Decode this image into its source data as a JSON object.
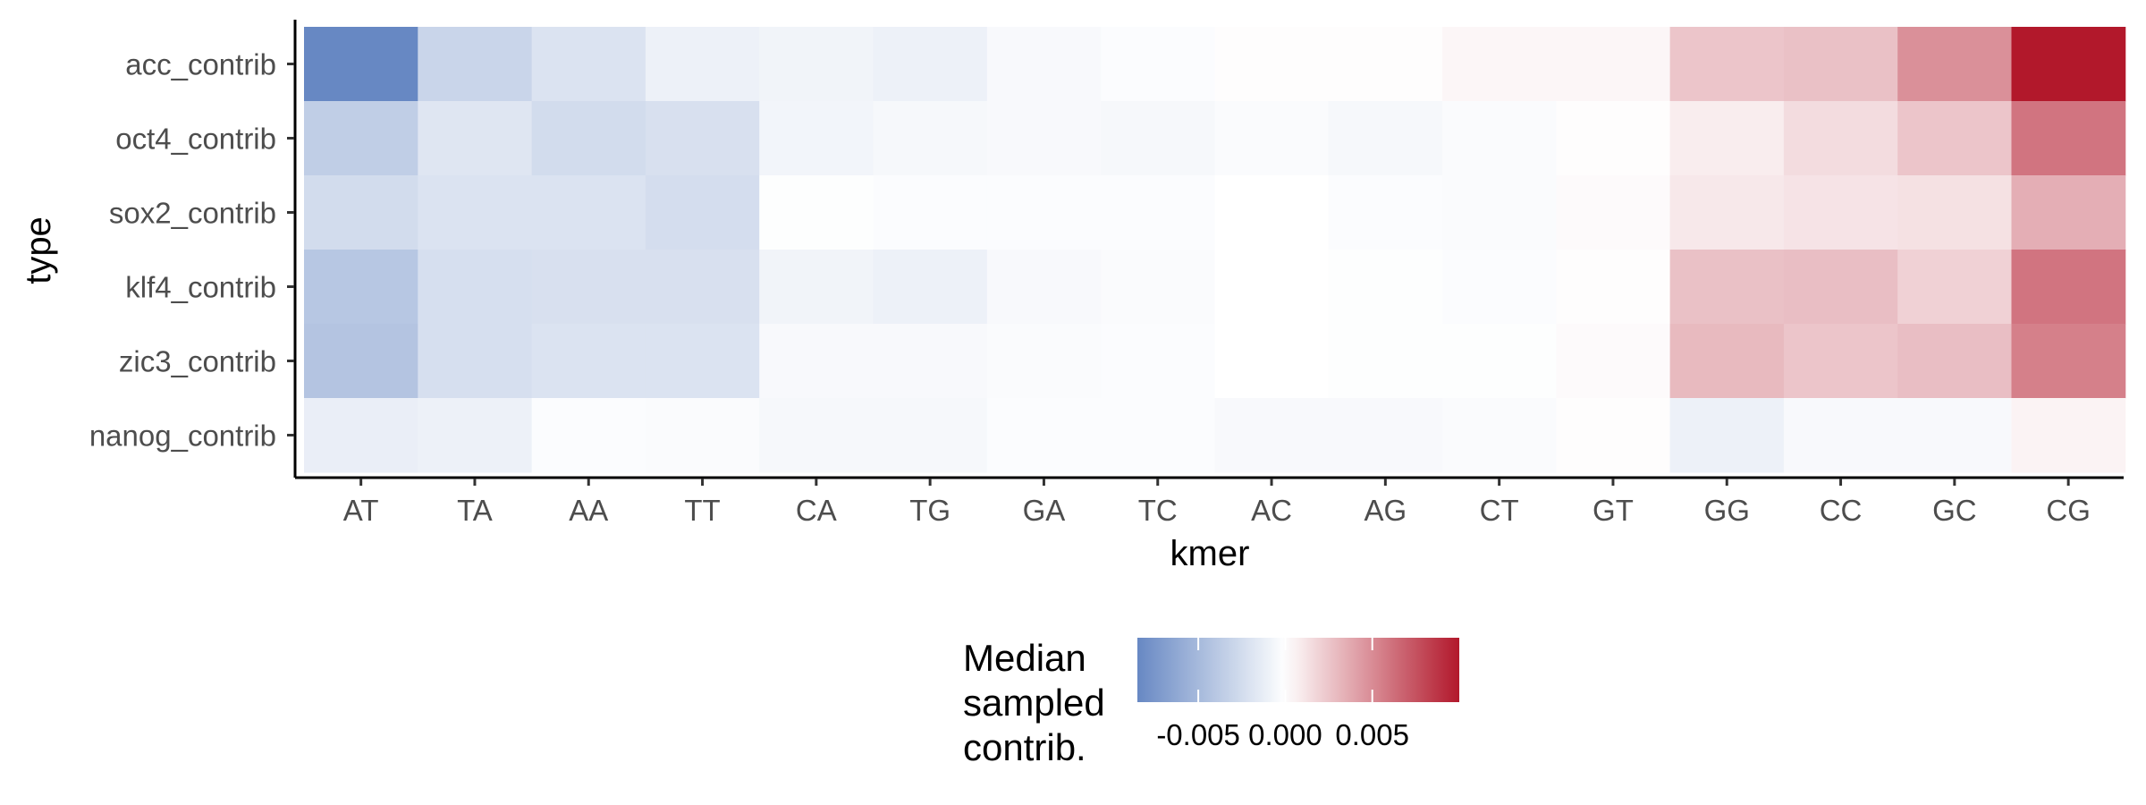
{
  "chart_data": {
    "type": "heatmap",
    "xlabel": "kmer",
    "ylabel": "type",
    "x": [
      "AT",
      "TA",
      "AA",
      "TT",
      "CA",
      "TG",
      "GA",
      "TC",
      "AC",
      "AG",
      "CT",
      "GT",
      "GG",
      "CC",
      "GC",
      "CG"
    ],
    "y": [
      "acc_contrib",
      "oct4_contrib",
      "sox2_contrib",
      "klf4_contrib",
      "zic3_contrib",
      "nanog_contrib"
    ],
    "values": [
      [
        -0.0085,
        -0.003,
        -0.002,
        -0.001,
        -0.0008,
        -0.001,
        -0.0004,
        -0.0002,
        0.0001,
        0.0001,
        0.0004,
        0.0004,
        0.0025,
        0.0027,
        0.0048,
        0.01
      ],
      [
        -0.0035,
        -0.0018,
        -0.0025,
        -0.0022,
        -0.0007,
        -0.0005,
        -0.0004,
        -0.0005,
        -0.0003,
        -0.0005,
        -0.0003,
        0.0001,
        0.0008,
        0.0015,
        0.0025,
        0.006
      ],
      [
        -0.0025,
        -0.002,
        -0.002,
        -0.0024,
        -0.0001,
        -0.0002,
        -0.0002,
        -0.0002,
        0.0,
        -0.0002,
        -0.0003,
        0.0002,
        0.001,
        0.0012,
        0.0013,
        0.0035
      ],
      [
        -0.004,
        -0.0023,
        -0.0022,
        -0.0022,
        -0.0008,
        -0.001,
        -0.0004,
        -0.0003,
        0.0,
        -0.0001,
        -0.0002,
        0.0001,
        0.0027,
        0.0028,
        0.002,
        0.006
      ],
      [
        -0.0042,
        -0.0023,
        -0.002,
        -0.002,
        -0.0004,
        -0.0004,
        -0.0003,
        -0.0002,
        0.0,
        -0.0001,
        -0.0001,
        0.0002,
        0.003,
        0.0025,
        0.0028,
        0.0055
      ],
      [
        -0.0012,
        -0.001,
        -0.0002,
        -0.0003,
        -0.0005,
        -0.0005,
        -0.0002,
        -0.0002,
        -0.0004,
        -0.0004,
        -0.0003,
        0.0001,
        -0.001,
        -0.0004,
        -0.0004,
        0.0005
      ]
    ],
    "color_scale": {
      "low_color": "#6788c3",
      "mid_color": "#ffffff",
      "high_color": "#b2182b",
      "limits": [
        -0.0085,
        0.01
      ],
      "midpoint": 0.0
    },
    "legend": {
      "title": [
        "Median",
        "sampled",
        "contrib."
      ],
      "ticks": [
        -0.005,
        0.0,
        0.005
      ],
      "tick_labels": [
        "-0.005",
        "0.000",
        "0.005"
      ],
      "placement": "bottom"
    }
  }
}
